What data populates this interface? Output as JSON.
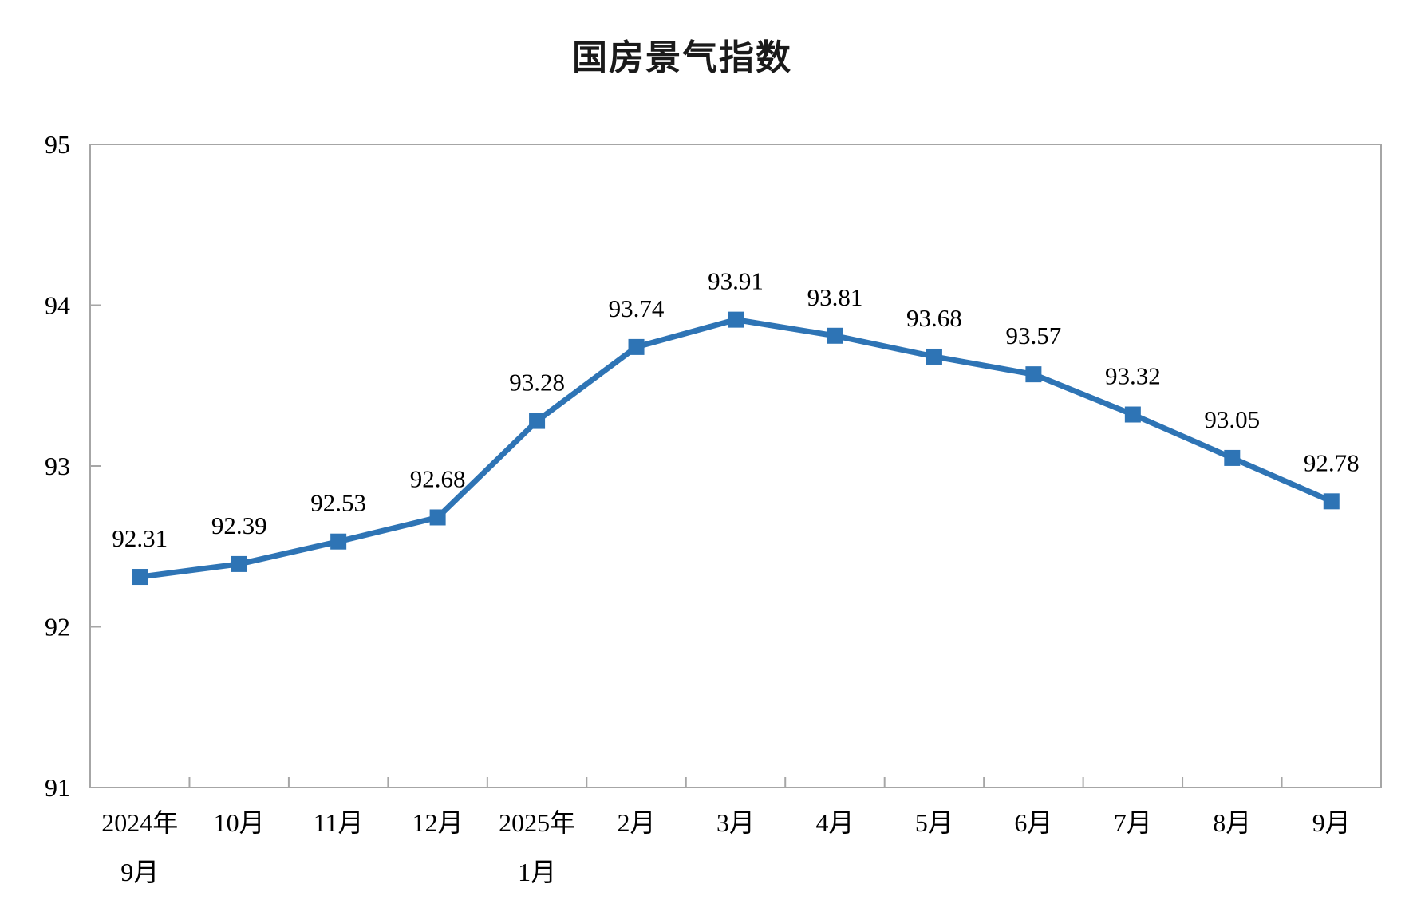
{
  "page": {
    "background": "#ffffff"
  },
  "chart_data": {
    "type": "line",
    "title": "国房景气指数",
    "categories": [
      [
        "2024年",
        "9月"
      ],
      [
        "10月"
      ],
      [
        "11月"
      ],
      [
        "12月"
      ],
      [
        "2025年",
        "1月"
      ],
      [
        "2月"
      ],
      [
        "3月"
      ],
      [
        "4月"
      ],
      [
        "5月"
      ],
      [
        "6月"
      ],
      [
        "7月"
      ],
      [
        "8月"
      ],
      [
        "9月"
      ]
    ],
    "series": [
      {
        "name": "国房景气指数",
        "values": [
          92.31,
          92.39,
          92.53,
          92.68,
          93.28,
          93.74,
          93.91,
          93.81,
          93.68,
          93.57,
          93.32,
          93.05,
          92.78
        ]
      }
    ],
    "data_labels": [
      "92.31",
      "92.39",
      "92.53",
      "92.68",
      "93.28",
      "93.74",
      "93.91",
      "93.81",
      "93.68",
      "93.57",
      "93.32",
      "93.05",
      "92.78"
    ],
    "y_axis": {
      "min": 91,
      "max": 95,
      "ticks": [
        91,
        92,
        93,
        94,
        95
      ],
      "tick_labels": [
        "91",
        "92",
        "93",
        "94",
        "95"
      ]
    },
    "x_axis": {
      "tick_position": "between_categories"
    },
    "grid": false,
    "legend": false,
    "line_color": "#2E74B5",
    "marker": "square",
    "marker_color": "#2E74B5",
    "axis_color": "#A6A6A6",
    "text_color": "#000000"
  }
}
